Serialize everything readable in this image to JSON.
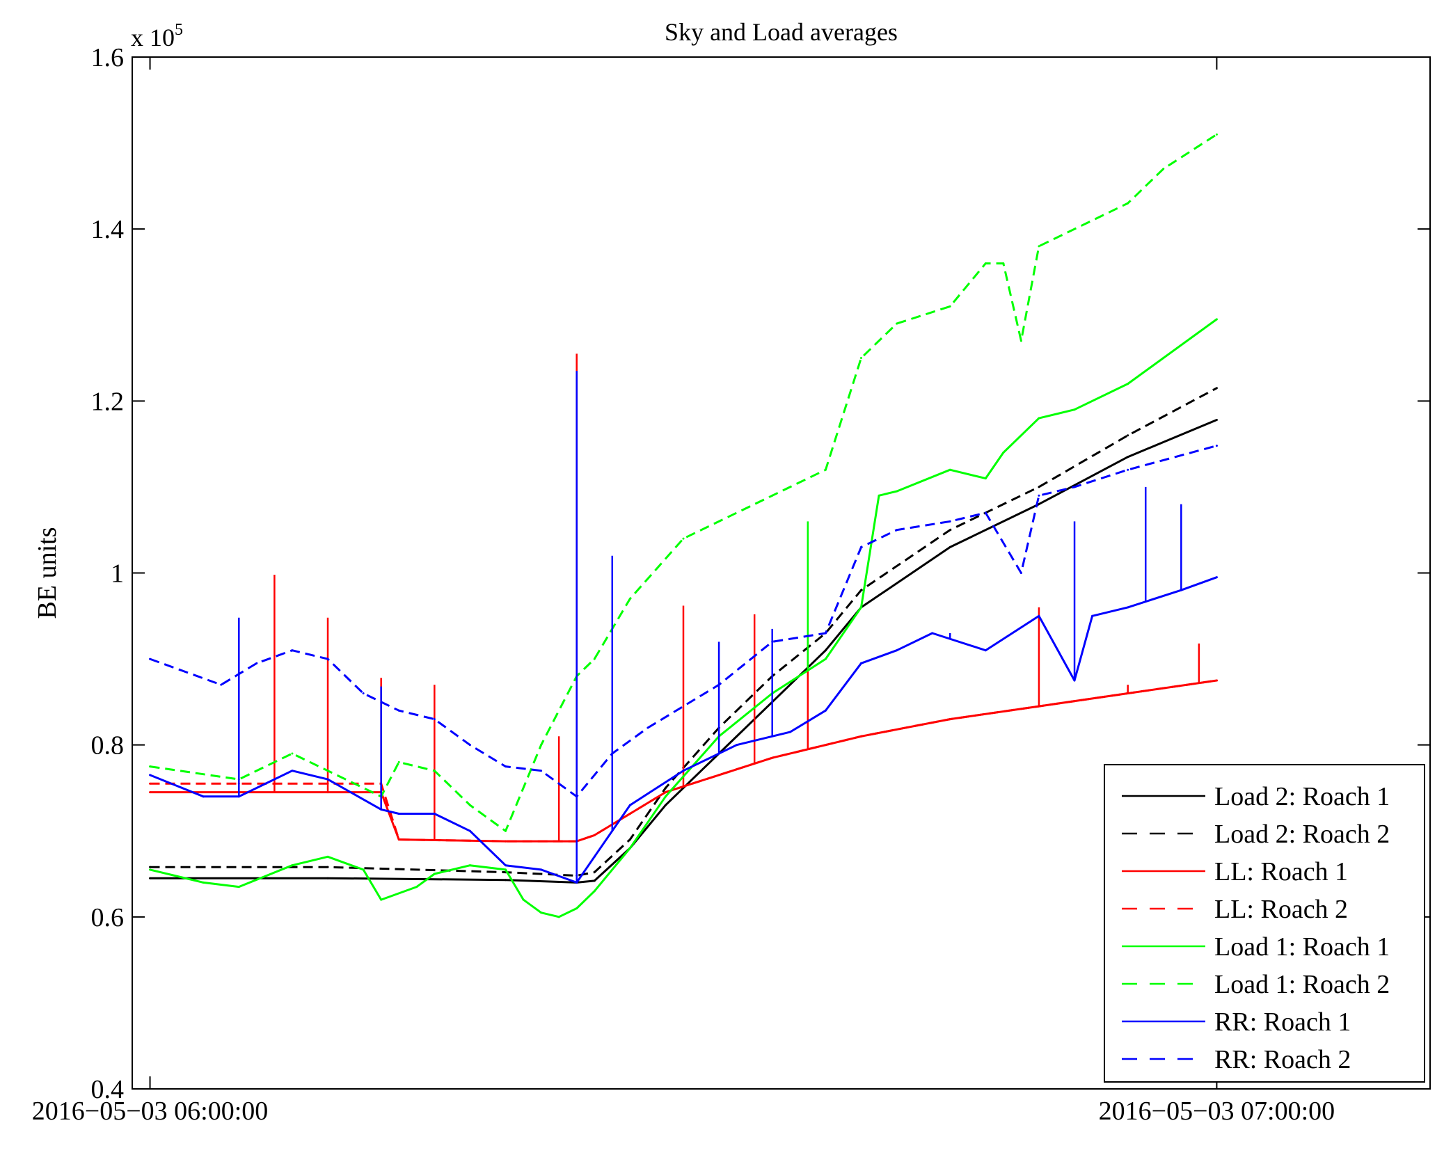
{
  "chart_data": {
    "type": "line",
    "title": "Sky and Load averages",
    "xlabel": "",
    "ylabel": "BE units",
    "y_multiplier": {
      "base": "x 10",
      "exponent": "5"
    },
    "xlim": [
      "2016-05-03 05:59:00",
      "2016-05-03 07:12:00"
    ],
    "ylim": [
      0.4,
      1.6
    ],
    "yticks": [
      0.4,
      0.6,
      0.8,
      1,
      1.2,
      1.4,
      1.6
    ],
    "yticklabels": [
      "0.4",
      "0.6",
      "0.8",
      "1",
      "1.2",
      "1.4",
      "1.6"
    ],
    "xticks": [
      "2016-05-03 06:00:00",
      "2016-05-03 07:00:00"
    ],
    "xticklabels": [
      "2016−05−03 06:00:00",
      "2016−05−03 07:00:00"
    ],
    "grid": false,
    "legend_position": "bottom-right",
    "series": [
      {
        "name": "Load 2: Roach 1",
        "color": "#000000",
        "dash": "solid",
        "x": [
          "06:00",
          "06:10",
          "06:20",
          "06:24",
          "06:25",
          "06:27",
          "06:29",
          "06:32",
          "06:35",
          "06:38",
          "06:40",
          "06:45",
          "06:50",
          "06:55",
          "07:00"
        ],
        "y": [
          0.645,
          0.645,
          0.643,
          0.64,
          0.642,
          0.68,
          0.73,
          0.79,
          0.85,
          0.91,
          0.96,
          1.03,
          1.08,
          1.135,
          1.178
        ],
        "spikes": []
      },
      {
        "name": "Load 2: Roach 2",
        "color": "#000000",
        "dash": "dashed",
        "x": [
          "06:00",
          "06:10",
          "06:20",
          "06:24",
          "06:25",
          "06:27",
          "06:29",
          "06:32",
          "06:35",
          "06:38",
          "06:40",
          "06:45",
          "06:50",
          "06:55",
          "07:00"
        ],
        "y": [
          0.658,
          0.658,
          0.652,
          0.648,
          0.652,
          0.69,
          0.75,
          0.82,
          0.88,
          0.93,
          0.98,
          1.05,
          1.1,
          1.16,
          1.215
        ],
        "spikes": []
      },
      {
        "name": "LL: Roach 1",
        "color": "#ff0000",
        "dash": "solid",
        "x": [
          "06:00",
          "06:05",
          "06:10",
          "06:13",
          "06:14",
          "06:20",
          "06:24",
          "06:25",
          "06:27",
          "06:29",
          "06:32",
          "06:35",
          "06:40",
          "06:45",
          "06:50",
          "06:55",
          "07:00"
        ],
        "y": [
          0.745,
          0.745,
          0.745,
          0.745,
          0.69,
          0.688,
          0.688,
          0.695,
          0.72,
          0.745,
          0.765,
          0.785,
          0.81,
          0.83,
          0.845,
          0.86,
          0.875
        ],
        "spikes": [
          {
            "x": "06:07",
            "y": 0.998
          },
          {
            "x": "06:10",
            "y": 0.948
          },
          {
            "x": "06:13",
            "y": 0.878
          },
          {
            "x": "06:16",
            "y": 0.87
          },
          {
            "x": "06:23",
            "y": 0.81
          },
          {
            "x": "06:24",
            "y": 1.255
          },
          {
            "x": "06:30",
            "y": 0.962
          },
          {
            "x": "06:34",
            "y": 0.952
          },
          {
            "x": "06:37",
            "y": 0.925
          },
          {
            "x": "06:50",
            "y": 0.96
          },
          {
            "x": "06:55",
            "y": 0.87
          },
          {
            "x": "06:59",
            "y": 0.918
          }
        ]
      },
      {
        "name": "LL: Roach 2",
        "color": "#ff0000",
        "dash": "dashed",
        "x": [
          "06:00",
          "06:05",
          "06:10",
          "06:13",
          "06:14",
          "06:20",
          "06:24",
          "06:25",
          "06:27",
          "06:29",
          "06:32",
          "06:35",
          "06:40",
          "06:45",
          "06:50",
          "06:55",
          "07:00"
        ],
        "y": [
          0.755,
          0.755,
          0.755,
          0.755,
          0.69,
          0.688,
          0.688,
          0.695,
          0.72,
          0.745,
          0.765,
          0.785,
          0.81,
          0.83,
          0.845,
          0.86,
          0.875
        ],
        "spikes": []
      },
      {
        "name": "Load 1: Roach 1",
        "color": "#00ff00",
        "dash": "solid",
        "x": [
          "06:00",
          "06:03",
          "06:05",
          "06:08",
          "06:10",
          "06:12",
          "06:13",
          "06:15",
          "06:16",
          "06:18",
          "06:20",
          "06:21",
          "06:22",
          "06:23",
          "06:24",
          "06:25",
          "06:27",
          "06:29",
          "06:32",
          "06:35",
          "06:38",
          "06:40",
          "06:41",
          "06:42",
          "06:45",
          "06:47",
          "06:48",
          "06:50",
          "06:52",
          "06:55",
          "06:57",
          "07:00"
        ],
        "y": [
          0.655,
          0.64,
          0.635,
          0.66,
          0.67,
          0.655,
          0.62,
          0.635,
          0.65,
          0.66,
          0.655,
          0.62,
          0.605,
          0.6,
          0.61,
          0.63,
          0.68,
          0.74,
          0.81,
          0.86,
          0.9,
          0.96,
          1.09,
          1.095,
          1.12,
          1.11,
          1.14,
          1.18,
          1.19,
          1.22,
          1.25,
          1.295
        ],
        "spikes": [
          {
            "x": "06:37",
            "y": 1.06
          }
        ]
      },
      {
        "name": "Load 1: Roach 2",
        "color": "#00ff00",
        "dash": "dashed",
        "x": [
          "06:00",
          "06:05",
          "06:08",
          "06:10",
          "06:13",
          "06:14",
          "06:16",
          "06:18",
          "06:20",
          "06:22",
          "06:24",
          "06:25",
          "06:27",
          "06:30",
          "06:35",
          "06:38",
          "06:40",
          "06:42",
          "06:45",
          "06:47",
          "06:48",
          "06:49",
          "06:50",
          "06:52",
          "06:55",
          "06:57",
          "07:00"
        ],
        "y": [
          0.775,
          0.76,
          0.79,
          0.77,
          0.74,
          0.78,
          0.77,
          0.73,
          0.7,
          0.8,
          0.88,
          0.9,
          0.97,
          1.04,
          1.09,
          1.12,
          1.25,
          1.29,
          1.31,
          1.36,
          1.36,
          1.27,
          1.38,
          1.4,
          1.43,
          1.47,
          1.51
        ],
        "spikes": []
      },
      {
        "name": "RR: Roach 1",
        "color": "#0000ff",
        "dash": "solid",
        "x": [
          "06:00",
          "06:03",
          "06:05",
          "06:08",
          "06:10",
          "06:13",
          "06:14",
          "06:16",
          "06:18",
          "06:20",
          "06:22",
          "06:24",
          "06:25",
          "06:27",
          "06:30",
          "06:33",
          "06:36",
          "06:38",
          "06:40",
          "06:42",
          "06:44",
          "06:47",
          "06:50",
          "06:52",
          "06:53",
          "06:55",
          "06:58",
          "07:00"
        ],
        "y": [
          0.765,
          0.74,
          0.74,
          0.77,
          0.76,
          0.725,
          0.72,
          0.72,
          0.7,
          0.66,
          0.655,
          0.64,
          0.67,
          0.73,
          0.77,
          0.8,
          0.815,
          0.84,
          0.895,
          0.91,
          0.93,
          0.91,
          0.95,
          0.875,
          0.95,
          0.96,
          0.98,
          0.995
        ],
        "spikes": [
          {
            "x": "06:05",
            "y": 0.948
          },
          {
            "x": "06:13",
            "y": 0.868
          },
          {
            "x": "06:24",
            "y": 1.235
          },
          {
            "x": "06:26",
            "y": 1.02
          },
          {
            "x": "06:32",
            "y": 0.92
          },
          {
            "x": "06:35",
            "y": 0.935
          },
          {
            "x": "06:45",
            "y": 0.93
          },
          {
            "x": "06:52",
            "y": 1.06
          },
          {
            "x": "06:56",
            "y": 1.1
          },
          {
            "x": "06:58",
            "y": 1.08
          }
        ]
      },
      {
        "name": "RR: Roach 2",
        "color": "#0000ff",
        "dash": "dashed",
        "x": [
          "06:00",
          "06:02",
          "06:04",
          "06:06",
          "06:08",
          "06:10",
          "06:12",
          "06:14",
          "06:16",
          "06:18",
          "06:20",
          "06:22",
          "06:24",
          "06:26",
          "06:28",
          "06:32",
          "06:35",
          "06:38",
          "06:40",
          "06:42",
          "06:45",
          "06:47",
          "06:49",
          "06:50",
          "06:52",
          "06:55",
          "07:00"
        ],
        "y": [
          0.9,
          0.885,
          0.87,
          0.895,
          0.91,
          0.9,
          0.86,
          0.84,
          0.83,
          0.8,
          0.775,
          0.77,
          0.74,
          0.79,
          0.82,
          0.87,
          0.92,
          0.93,
          1.03,
          1.05,
          1.06,
          1.07,
          1.0,
          1.09,
          1.1,
          1.12,
          1.148
        ],
        "spikes": []
      }
    ]
  }
}
